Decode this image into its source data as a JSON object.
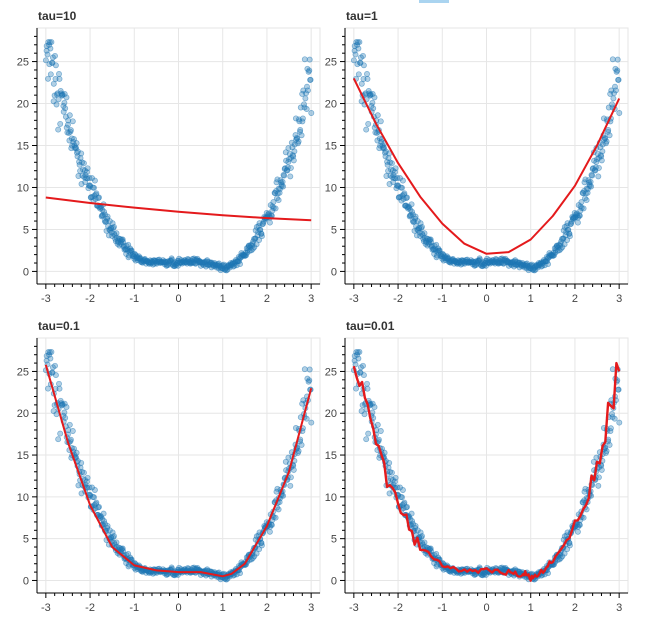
{
  "colors": {
    "points": "#1f77b4",
    "fit": "#e41a1c",
    "grid": "#e6e6e6",
    "toolbar_marker": "#aad4f0"
  },
  "chart_data": [
    {
      "type": "scatter",
      "title": "tau=10",
      "xlim": [
        -3.2,
        3.2
      ],
      "ylim": [
        -1.5,
        29
      ],
      "xticks": [
        -3,
        -2,
        -1,
        0,
        1,
        2,
        3
      ],
      "yticks": [
        0,
        5,
        10,
        15,
        20,
        25
      ],
      "grid": true,
      "series": [
        {
          "kind": "points",
          "x_range": [
            -3,
            3
          ],
          "y_range": [
            0.2,
            28
          ]
        },
        {
          "kind": "fit-line",
          "x": [
            -3,
            -2,
            -1,
            0,
            1,
            2,
            3
          ],
          "y": [
            8.8,
            8.15,
            7.6,
            7.1,
            6.7,
            6.35,
            6.1
          ]
        }
      ]
    },
    {
      "type": "scatter",
      "title": "tau=1",
      "xlim": [
        -3.2,
        3.2
      ],
      "ylim": [
        -1.5,
        29
      ],
      "xticks": [
        -3,
        -2,
        -1,
        0,
        1,
        2,
        3
      ],
      "yticks": [
        0,
        5,
        10,
        15,
        20,
        25
      ],
      "grid": true,
      "series": [
        {
          "kind": "points",
          "x_range": [
            -3,
            3
          ],
          "y_range": [
            0.2,
            28
          ]
        },
        {
          "kind": "fit-line",
          "x": [
            -3,
            -2.5,
            -2,
            -1.5,
            -1,
            -0.5,
            0,
            0.5,
            1,
            1.5,
            2,
            2.5,
            3
          ],
          "y": [
            23.0,
            17.6,
            12.9,
            8.9,
            5.7,
            3.3,
            2.1,
            2.3,
            3.8,
            6.6,
            10.2,
            15.0,
            20.6
          ]
        }
      ]
    },
    {
      "type": "scatter",
      "title": "tau=0.1",
      "xlim": [
        -3.2,
        3.2
      ],
      "ylim": [
        -1.5,
        29
      ],
      "xticks": [
        -3,
        -2,
        -1,
        0,
        1,
        2,
        3
      ],
      "yticks": [
        0,
        5,
        10,
        15,
        20,
        25
      ],
      "grid": true,
      "series": [
        {
          "kind": "points",
          "x_range": [
            -3,
            3
          ],
          "y_range": [
            0.2,
            28
          ]
        },
        {
          "kind": "fit-line",
          "x": [
            -3,
            -2.5,
            -2,
            -1.5,
            -1,
            -0.5,
            0,
            0.5,
            0.8,
            1,
            1.2,
            1.5,
            2,
            2.5,
            3
          ],
          "y": [
            25.8,
            16.5,
            9.0,
            4.0,
            1.8,
            1.2,
            1.0,
            1.0,
            0.7,
            0.5,
            0.8,
            2.0,
            6.5,
            13.0,
            23.0
          ]
        }
      ]
    },
    {
      "type": "scatter",
      "title": "tau=0.01",
      "xlim": [
        -3.2,
        3.2
      ],
      "ylim": [
        -1.5,
        29
      ],
      "xticks": [
        -3,
        -2,
        -1,
        0,
        1,
        2,
        3
      ],
      "yticks": [
        0,
        5,
        10,
        15,
        20,
        25
      ],
      "grid": true,
      "series": [
        {
          "kind": "points",
          "x_range": [
            -3,
            3
          ],
          "y_range": [
            0.2,
            28
          ]
        },
        {
          "kind": "fit-line",
          "x": [
            -3,
            -2.5,
            -2,
            -1.5,
            -1,
            -0.5,
            0,
            0.5,
            0.8,
            1,
            1.2,
            1.5,
            2,
            2.5,
            3
          ],
          "y": [
            26.0,
            16.8,
            9.0,
            4.0,
            1.8,
            1.2,
            1.0,
            1.0,
            0.7,
            0.4,
            0.8,
            2.0,
            6.5,
            13.5,
            25.0
          ]
        }
      ]
    }
  ]
}
